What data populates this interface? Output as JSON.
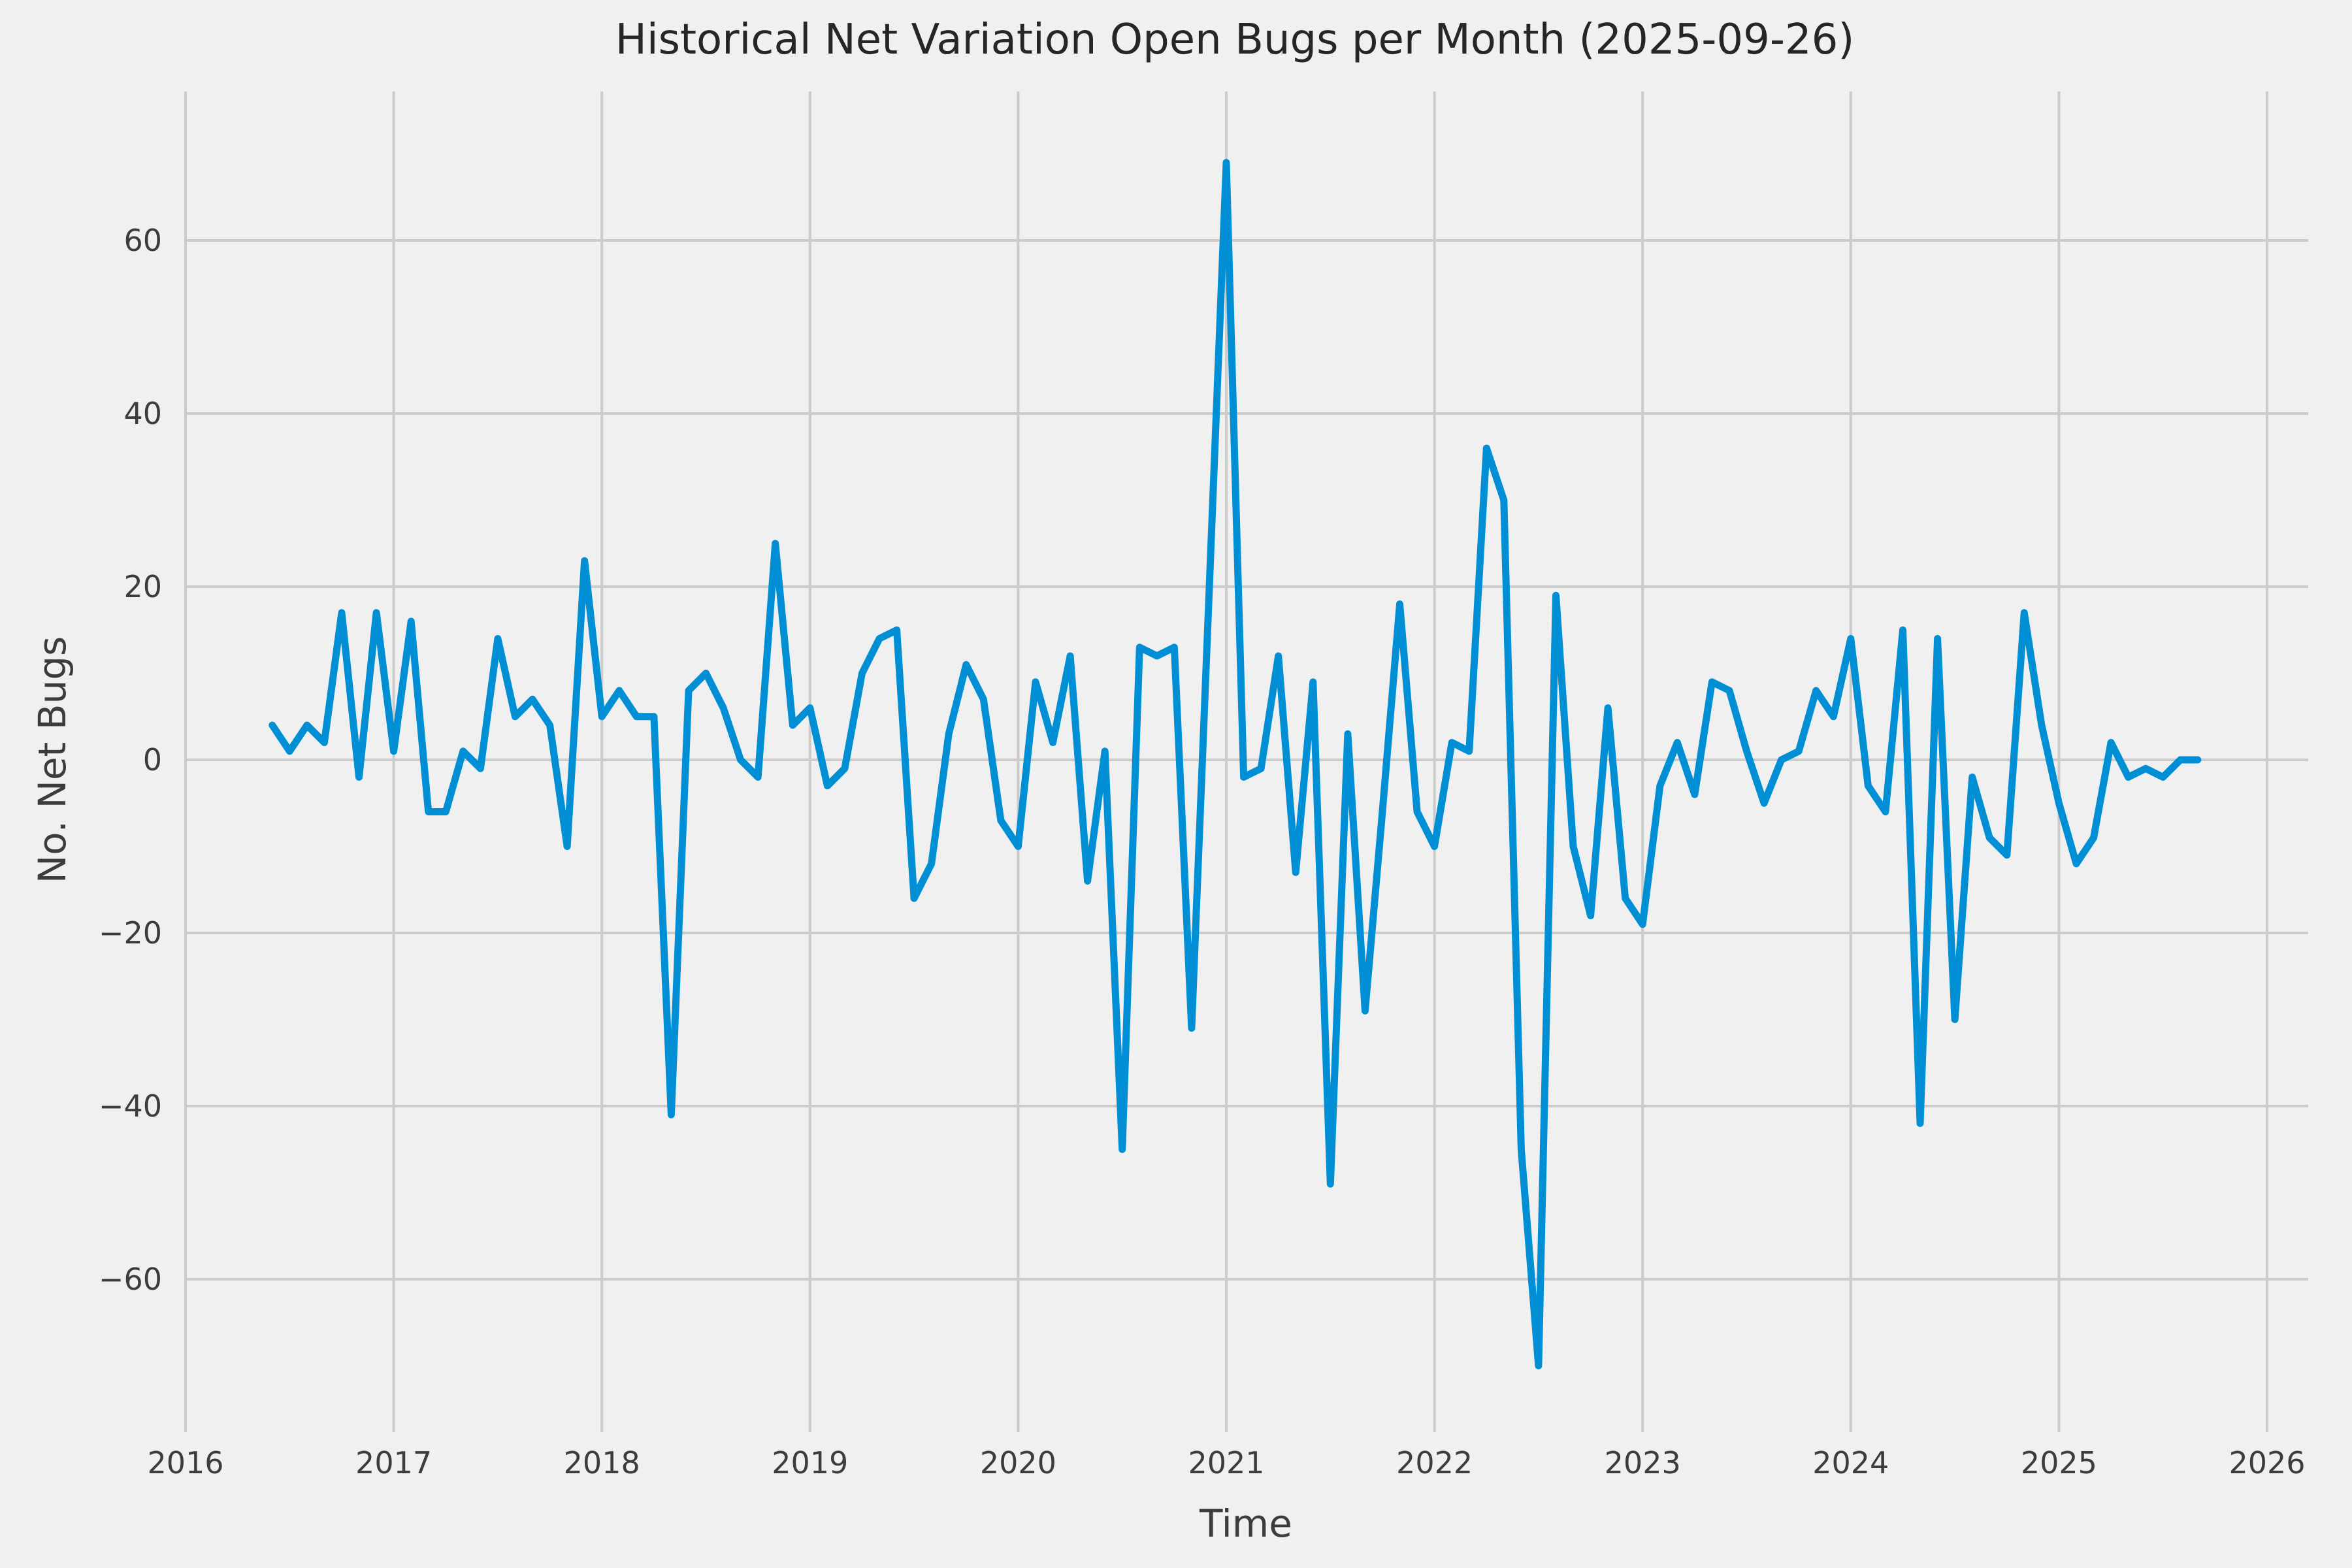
{
  "chart_data": {
    "type": "line",
    "title": "Historical Net Variation Open Bugs per Month (2025-09-26)",
    "xlabel": "Time",
    "ylabel": "No. Net Bugs",
    "legend": null,
    "grid": true,
    "line_color": "#008fd5",
    "background_color": "#f0f0f0",
    "gridline_color": "#cbcbcb",
    "xlim": [
      2016,
      2026
    ],
    "ylim": [
      -75,
      74
    ],
    "xticks": [
      "2016",
      "2017",
      "2018",
      "2019",
      "2020",
      "2021",
      "2022",
      "2023",
      "2024",
      "2025",
      "2026"
    ],
    "xtick_years": [
      2016,
      2017,
      2018,
      2019,
      2020,
      2021,
      2022,
      2023,
      2024,
      2025,
      2026
    ],
    "yticks": [
      "60",
      "40",
      "20",
      "0",
      "−20",
      "−40",
      "−60"
    ],
    "ytick_values": [
      60,
      40,
      20,
      0,
      -20,
      -40,
      -60
    ],
    "x_start_year": 2016,
    "x_start_month": 6,
    "months": [
      "2016-06",
      "2016-07",
      "2016-08",
      "2016-09",
      "2016-10",
      "2016-11",
      "2016-12",
      "2017-01",
      "2017-02",
      "2017-03",
      "2017-04",
      "2017-05",
      "2017-06",
      "2017-07",
      "2017-08",
      "2017-09",
      "2017-10",
      "2017-11",
      "2017-12",
      "2018-01",
      "2018-02",
      "2018-03",
      "2018-04",
      "2018-05",
      "2018-06",
      "2018-07",
      "2018-08",
      "2018-09",
      "2018-10",
      "2018-11",
      "2018-12",
      "2019-01",
      "2019-02",
      "2019-03",
      "2019-04",
      "2019-05",
      "2019-06",
      "2019-07",
      "2019-08",
      "2019-09",
      "2019-10",
      "2019-11",
      "2019-12",
      "2020-01",
      "2020-02",
      "2020-03",
      "2020-04",
      "2020-05",
      "2020-06",
      "2020-07",
      "2020-08",
      "2020-09",
      "2020-10",
      "2020-11",
      "2020-12",
      "2021-01",
      "2021-02",
      "2021-03",
      "2021-04",
      "2021-05",
      "2021-06",
      "2021-07",
      "2021-08",
      "2021-09",
      "2021-10",
      "2021-11",
      "2021-12",
      "2022-01",
      "2022-02",
      "2022-03",
      "2022-04",
      "2022-05",
      "2022-06",
      "2022-07",
      "2022-08",
      "2022-09",
      "2022-10",
      "2022-11",
      "2022-12",
      "2023-01",
      "2023-02",
      "2023-03",
      "2023-04",
      "2023-05",
      "2023-06",
      "2023-07",
      "2023-08",
      "2023-09",
      "2023-10",
      "2023-11",
      "2023-12",
      "2024-01",
      "2024-02",
      "2024-03",
      "2024-04",
      "2024-05",
      "2024-06",
      "2024-07",
      "2024-08",
      "2024-09",
      "2024-10",
      "2024-11",
      "2024-12",
      "2025-01",
      "2025-02",
      "2025-03",
      "2025-04",
      "2025-05",
      "2025-06",
      "2025-07",
      "2025-08",
      "2025-09"
    ],
    "values": [
      4,
      1,
      4,
      2,
      17,
      -2,
      17,
      1,
      16,
      -6,
      -6,
      1,
      -1,
      14,
      5,
      7,
      4,
      -10,
      23,
      5,
      8,
      5,
      5,
      -41,
      8,
      10,
      6,
      0,
      -2,
      25,
      4,
      6,
      -3,
      -1,
      10,
      14,
      15,
      -16,
      -12,
      3,
      11,
      7,
      -7,
      -10,
      9,
      2,
      12,
      -14,
      1,
      -45,
      13,
      12,
      13,
      -31,
      19,
      69,
      -2,
      -1,
      12,
      -13,
      9,
      -49,
      3,
      -29,
      -6,
      18,
      -6,
      -10,
      2,
      1,
      36,
      30,
      -45,
      -70,
      19,
      -10,
      -18,
      6,
      -16,
      -19,
      -3,
      2,
      -4,
      9,
      8,
      1,
      -5,
      0,
      1,
      8,
      5,
      14,
      -3,
      -6,
      15,
      -42,
      14,
      -30,
      -2,
      -9,
      -11,
      17,
      4,
      -5,
      -12,
      -9,
      2,
      -2,
      -1,
      -2,
      0,
      0
    ]
  }
}
